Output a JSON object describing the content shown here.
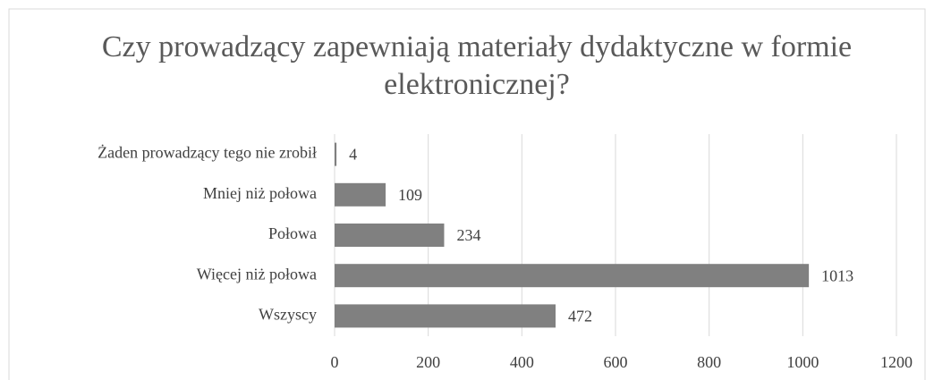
{
  "chart_data": {
    "type": "bar",
    "orientation": "horizontal",
    "title": "Czy prowadzący zapewniają materiały dydaktyczne w formie elektronicznej?",
    "categories": [
      "Żaden prowadzący tego nie zrobił",
      "Mniej niż połowa",
      "Połowa",
      "Więcej niż połowa",
      "Wszyscy"
    ],
    "values": [
      4,
      109,
      234,
      1013,
      472
    ],
    "color": "#808080",
    "xlim": [
      0,
      1200
    ],
    "xticks": [
      0,
      200,
      400,
      600,
      800,
      1000,
      1200
    ],
    "grid": true
  }
}
